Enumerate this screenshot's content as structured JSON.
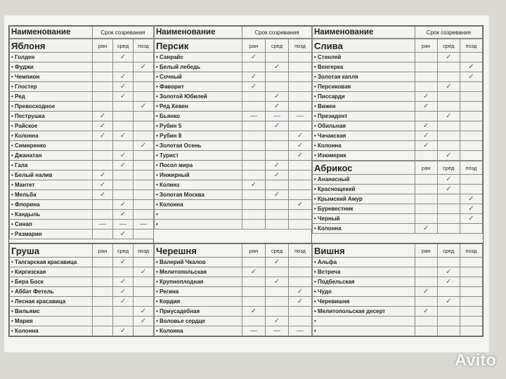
{
  "columns": [
    {
      "header": {
        "name": "Наименование",
        "period": "Срок созревания"
      },
      "sections": [
        {
          "title": "Яблоня",
          "columns": [
            "ран",
            "сред",
            "позд"
          ],
          "rows": [
            {
              "name": "Голден",
              "cells": [
                null,
                "✓",
                null
              ]
            },
            {
              "name": "Фуджи",
              "cells": [
                null,
                null,
                "✓"
              ]
            },
            {
              "name": "Чемпион",
              "cells": [
                null,
                "✓",
                null
              ]
            },
            {
              "name": "Глостер",
              "cells": [
                null,
                "✓",
                null
              ]
            },
            {
              "name": "Ред",
              "cells": [
                null,
                "✓",
                null
              ]
            },
            {
              "name": "Превосходное",
              "cells": [
                null,
                null,
                "✓"
              ]
            },
            {
              "name": "Пеструшка",
              "cells": [
                "✓",
                null,
                null
              ]
            },
            {
              "name": "Райское",
              "cells": [
                "✓",
                null,
                null
              ]
            },
            {
              "name": "Колонна",
              "cells": [
                "✓",
                "✓",
                null
              ]
            },
            {
              "name": "Симиренко",
              "cells": [
                null,
                null,
                "✓"
              ]
            },
            {
              "name": "Джанатан",
              "cells": [
                null,
                "✓",
                null
              ]
            },
            {
              "name": "Гала",
              "cells": [
                null,
                "✓",
                null
              ]
            },
            {
              "name": "Белый налив",
              "cells": [
                "✓",
                null,
                null
              ]
            },
            {
              "name": "Мантет",
              "cells": [
                "✓",
                null,
                null
              ]
            },
            {
              "name": "Мельба",
              "cells": [
                "✓",
                null,
                null
              ]
            },
            {
              "name": "Флорина",
              "cells": [
                null,
                "✓",
                null
              ]
            },
            {
              "name": "Кандыль",
              "cells": [
                null,
                "✓",
                null
              ]
            },
            {
              "name": "Синап",
              "cells": [
                "—",
                "—",
                "—"
              ]
            },
            {
              "name": "Размарин",
              "cells": [
                null,
                "✓",
                null
              ]
            }
          ]
        },
        {
          "title": "Груша",
          "columns": [
            "ран",
            "сред",
            "позд"
          ],
          "rows": [
            {
              "name": "Талгарская красавица",
              "cells": [
                null,
                "✓",
                null
              ]
            },
            {
              "name": "Киргизская",
              "cells": [
                null,
                null,
                "✓"
              ]
            },
            {
              "name": "Бера Боск",
              "cells": [
                null,
                "✓",
                null
              ]
            },
            {
              "name": "Аббат Фетель",
              "cells": [
                null,
                "✓",
                null
              ]
            },
            {
              "name": "Лесная красавица",
              "cells": [
                null,
                "✓",
                null
              ]
            },
            {
              "name": "Вильямс",
              "cells": [
                null,
                null,
                "✓"
              ]
            },
            {
              "name": "Мария",
              "cells": [
                null,
                null,
                "✓"
              ]
            },
            {
              "name": "Колонна",
              "cells": [
                null,
                "✓",
                null
              ]
            }
          ]
        }
      ]
    },
    {
      "header": {
        "name": "Наименование",
        "period": "Срок созревания"
      },
      "sections": [
        {
          "title": "Персик",
          "columns": [
            "ран",
            "сред",
            "позд"
          ],
          "rows": [
            {
              "name": "Санрайс",
              "cells": [
                "✓",
                null,
                null
              ]
            },
            {
              "name": "Белый лебедь",
              "cells": [
                null,
                "✓",
                null
              ]
            },
            {
              "name": "Сочный",
              "cells": [
                "✓",
                null,
                null
              ]
            },
            {
              "name": "Фаворит",
              "cells": [
                "✓",
                null,
                null
              ]
            },
            {
              "name": "Золотой Юбилей",
              "cells": [
                null,
                "✓",
                null
              ]
            },
            {
              "name": "Ред Хевен",
              "cells": [
                null,
                "✓",
                null
              ]
            },
            {
              "name": "Бьянко",
              "cells": [
                "—",
                "—",
                "—"
              ]
            },
            {
              "name": "Рубин 5",
              "cells": [
                null,
                "✓",
                null
              ]
            },
            {
              "name": "Рубин 8",
              "cells": [
                null,
                null,
                "✓"
              ]
            },
            {
              "name": "Золотая Осень",
              "cells": [
                null,
                null,
                "✓"
              ]
            },
            {
              "name": "Турист",
              "cells": [
                null,
                null,
                "✓"
              ]
            },
            {
              "name": "Посол мира",
              "cells": [
                null,
                "✓",
                null
              ]
            },
            {
              "name": "Инжирный",
              "cells": [
                null,
                "✓",
                null
              ]
            },
            {
              "name": "Колинз",
              "cells": [
                "✓",
                null,
                null
              ]
            },
            {
              "name": "Золотая Москва",
              "cells": [
                null,
                "✓",
                null
              ]
            },
            {
              "name": "Колонна",
              "cells": [
                null,
                null,
                "✓"
              ]
            },
            {
              "name": null,
              "cells": [
                null,
                null,
                null
              ]
            },
            {
              "name": null,
              "cells": [
                null,
                null,
                null
              ]
            }
          ]
        },
        {
          "title": "Черешня",
          "columns": [
            "ран",
            "сред",
            "позд"
          ],
          "rows": [
            {
              "name": "Валерий Чкалов",
              "cells": [
                null,
                "✓",
                null
              ]
            },
            {
              "name": "Мелитопольская",
              "cells": [
                "✓",
                null,
                null
              ]
            },
            {
              "name": "Крупноплодная",
              "cells": [
                null,
                "✓",
                null
              ]
            },
            {
              "name": "Регина",
              "cells": [
                null,
                null,
                "✓"
              ]
            },
            {
              "name": "Кордия",
              "cells": [
                null,
                null,
                "✓"
              ]
            },
            {
              "name": "Приусадебная",
              "cells": [
                "✓",
                null,
                null
              ]
            },
            {
              "name": "Воловье сердце",
              "cells": [
                null,
                "✓",
                null
              ]
            },
            {
              "name": "Колонна",
              "cells": [
                "—",
                "—",
                "—"
              ]
            }
          ]
        }
      ]
    },
    {
      "header": {
        "name": "Наименование",
        "period": "Срок созревания"
      },
      "sections": [
        {
          "title": "Слива",
          "columns": [
            "ран",
            "сред",
            "позд"
          ],
          "rows": [
            {
              "name": "Стенлей",
              "cells": [
                null,
                "✓",
                null
              ]
            },
            {
              "name": "Венгерка",
              "cells": [
                null,
                null,
                "✓"
              ]
            },
            {
              "name": "Золотая капля",
              "cells": [
                null,
                null,
                "✓"
              ]
            },
            {
              "name": "Персиковая",
              "cells": [
                null,
                "✓",
                null
              ]
            },
            {
              "name": "Писсарди",
              "cells": [
                "✓",
                null,
                null
              ]
            },
            {
              "name": "Вижен",
              "cells": [
                "✓",
                null,
                null
              ]
            },
            {
              "name": "Президент",
              "cells": [
                null,
                "✓",
                null
              ]
            },
            {
              "name": "Обильная",
              "cells": [
                "✓",
                null,
                null
              ]
            },
            {
              "name": "Чачакская",
              "cells": [
                "✓",
                null,
                null
              ]
            },
            {
              "name": "Колонна",
              "cells": [
                "✓",
                null,
                null
              ]
            },
            {
              "name": "Изюмерик",
              "cells": [
                null,
                "✓",
                null
              ]
            }
          ]
        },
        {
          "title": "Абрикос",
          "columns": [
            "ран",
            "сред",
            "позд"
          ],
          "rows": [
            {
              "name": "Ананасный",
              "cells": [
                null,
                "✓",
                null
              ]
            },
            {
              "name": "Краснощекий",
              "cells": [
                null,
                "✓",
                null
              ]
            },
            {
              "name": "Крымский Амур",
              "cells": [
                null,
                null,
                "✓"
              ]
            },
            {
              "name": "Буревестник",
              "cells": [
                null,
                null,
                "✓"
              ]
            },
            {
              "name": "Черный",
              "cells": [
                null,
                null,
                "✓"
              ]
            },
            {
              "name": "Колонна",
              "cells": [
                "✓",
                null,
                null
              ]
            }
          ]
        },
        {
          "title": "Вишня",
          "columns": [
            "ран",
            "сред",
            "позд"
          ],
          "rows": [
            {
              "name": "Альфа",
              "cells": [
                null,
                null,
                null
              ]
            },
            {
              "name": "Встреча",
              "cells": [
                null,
                "✓",
                null
              ]
            },
            {
              "name": "Подбельская",
              "cells": [
                null,
                "✓",
                null
              ]
            },
            {
              "name": "Чудо",
              "cells": [
                "✓",
                null,
                null
              ]
            },
            {
              "name": "Черевишня",
              "cells": [
                null,
                "✓",
                null
              ]
            },
            {
              "name": "Мелитопольская десерт",
              "cells": [
                "✓",
                null,
                null
              ]
            },
            {
              "name": null,
              "cells": [
                null,
                null,
                null
              ]
            },
            {
              "name": null,
              "cells": [
                null,
                null,
                null
              ]
            }
          ]
        }
      ]
    }
  ],
  "watermark": "Avito"
}
